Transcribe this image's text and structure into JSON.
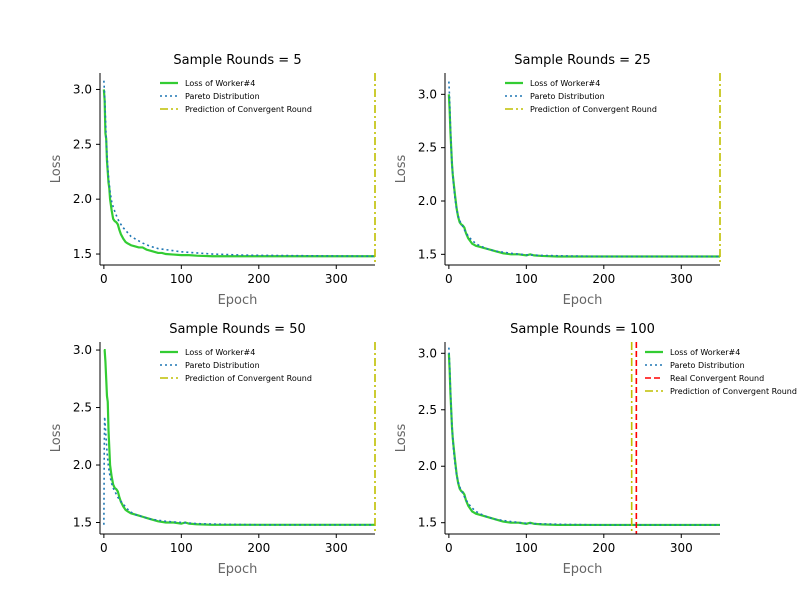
{
  "colors": {
    "loss": "#33cc33",
    "pareto": "#1f77b4",
    "real": "#ff0000",
    "prediction": "#bfbf00",
    "axis_label": "#666666"
  },
  "chart_data": [
    {
      "type": "line",
      "title": "Sample Rounds = 5",
      "xlabel": "Epoch",
      "ylabel": "Loss",
      "xlim": [
        -5,
        350
      ],
      "ylim": [
        1.4,
        3.15
      ],
      "xticks": [
        0,
        100,
        200,
        300
      ],
      "yticks": [
        1.5,
        2.0,
        2.5,
        3.0
      ],
      "xtick_labels": [
        "0",
        "100",
        "200",
        "300"
      ],
      "ytick_labels": [
        "1.5",
        "2.0",
        "2.5",
        "3.0"
      ],
      "grid": false,
      "legend_position": "top-center",
      "legend": [
        "Loss of Worker#4",
        "Pareto Distribution",
        "Prediction of Convergent Round"
      ],
      "series": [
        {
          "name": "Loss of Worker#4",
          "style": "solid",
          "color": "#33cc33",
          "x": [
            0,
            1,
            2,
            3,
            4,
            5,
            6,
            7,
            8,
            10,
            12,
            14,
            16,
            18,
            20,
            22,
            25,
            28,
            30,
            35,
            40,
            45,
            50,
            55,
            60,
            65,
            70,
            75,
            80,
            90,
            100,
            110,
            120,
            140,
            160,
            180,
            200,
            220,
            250,
            300,
            350
          ],
          "y": [
            3.0,
            2.9,
            2.6,
            2.55,
            2.35,
            2.25,
            2.15,
            2.1,
            2.0,
            1.9,
            1.82,
            1.8,
            1.79,
            1.77,
            1.72,
            1.68,
            1.64,
            1.61,
            1.6,
            1.58,
            1.57,
            1.56,
            1.56,
            1.54,
            1.53,
            1.52,
            1.51,
            1.51,
            1.5,
            1.495,
            1.49,
            1.49,
            1.485,
            1.48,
            1.48,
            1.48,
            1.48,
            1.48,
            1.48,
            1.48,
            1.48
          ]
        },
        {
          "name": "Pareto Distribution",
          "style": "dotted",
          "color": "#1f77b4",
          "x": [
            0,
            1,
            2,
            3,
            4,
            5,
            6,
            8,
            10,
            12,
            15,
            18,
            20,
            25,
            30,
            35,
            40,
            50,
            60,
            70,
            80,
            90,
            100,
            120,
            140,
            160,
            180,
            200,
            250,
            300,
            350
          ],
          "y": [
            3.08,
            2.95,
            2.75,
            2.55,
            2.4,
            2.3,
            2.2,
            2.07,
            1.98,
            1.93,
            1.87,
            1.82,
            1.79,
            1.74,
            1.7,
            1.66,
            1.64,
            1.6,
            1.57,
            1.55,
            1.54,
            1.53,
            1.52,
            1.51,
            1.5,
            1.495,
            1.49,
            1.488,
            1.485,
            1.482,
            1.48
          ]
        },
        {
          "name": "Prediction of Convergent Round",
          "style": "dashdot",
          "color": "#bfbf00",
          "vline": 350
        }
      ]
    },
    {
      "type": "line",
      "title": "Sample Rounds = 25",
      "xlabel": "Epoch",
      "ylabel": "Loss",
      "xlim": [
        -5,
        350
      ],
      "ylim": [
        1.4,
        3.2
      ],
      "xticks": [
        0,
        100,
        200,
        300
      ],
      "yticks": [
        1.5,
        2.0,
        2.5,
        3.0
      ],
      "xtick_labels": [
        "0",
        "100",
        "200",
        "300"
      ],
      "ytick_labels": [
        "1.5",
        "2.0",
        "2.5",
        "3.0"
      ],
      "grid": false,
      "legend_position": "top-center",
      "legend": [
        "Loss of Worker#4",
        "Pareto Distribution",
        "Prediction of Convergent Round"
      ],
      "series": [
        {
          "name": "Loss of Worker#4",
          "style": "solid",
          "color": "#33cc33",
          "x": [
            0,
            1,
            2,
            3,
            4,
            5,
            6,
            8,
            10,
            12,
            14,
            16,
            18,
            20,
            22,
            25,
            28,
            30,
            35,
            40,
            45,
            50,
            55,
            60,
            65,
            70,
            80,
            90,
            100,
            105,
            110,
            120,
            140,
            160,
            180,
            200,
            250,
            300,
            350
          ],
          "y": [
            3.0,
            2.85,
            2.65,
            2.5,
            2.35,
            2.25,
            2.18,
            2.05,
            1.93,
            1.85,
            1.8,
            1.78,
            1.77,
            1.75,
            1.7,
            1.65,
            1.62,
            1.6,
            1.58,
            1.57,
            1.56,
            1.55,
            1.54,
            1.53,
            1.52,
            1.51,
            1.5,
            1.5,
            1.49,
            1.5,
            1.49,
            1.485,
            1.48,
            1.48,
            1.48,
            1.48,
            1.48,
            1.48,
            1.48
          ]
        },
        {
          "name": "Pareto Distribution",
          "style": "dotted",
          "color": "#1f77b4",
          "x": [
            0,
            1,
            2,
            3,
            4,
            5,
            6,
            8,
            10,
            12,
            15,
            18,
            20,
            25,
            30,
            35,
            40,
            50,
            60,
            70,
            80,
            100,
            120,
            150,
            200,
            250,
            300,
            350
          ],
          "y": [
            3.12,
            2.95,
            2.7,
            2.5,
            2.35,
            2.25,
            2.15,
            2.02,
            1.92,
            1.86,
            1.8,
            1.76,
            1.73,
            1.67,
            1.63,
            1.6,
            1.58,
            1.55,
            1.53,
            1.52,
            1.51,
            1.495,
            1.49,
            1.485,
            1.48,
            1.48,
            1.48,
            1.48
          ]
        },
        {
          "name": "Prediction of Convergent Round",
          "style": "dashdot",
          "color": "#bfbf00",
          "vline": 350
        }
      ]
    },
    {
      "type": "line",
      "title": "Sample Rounds = 50",
      "xlabel": "Epoch",
      "ylabel": "Loss",
      "xlim": [
        -5,
        350
      ],
      "ylim": [
        1.4,
        3.07
      ],
      "xticks": [
        0,
        100,
        200,
        300
      ],
      "yticks": [
        1.5,
        2.0,
        2.5,
        3.0
      ],
      "xtick_labels": [
        "0",
        "100",
        "200",
        "300"
      ],
      "ytick_labels": [
        "1.5",
        "2.0",
        "2.5",
        "3.0"
      ],
      "grid": false,
      "legend_position": "top-center",
      "legend": [
        "Loss of Worker#4",
        "Pareto Distribution",
        "Prediction of Convergent Round"
      ],
      "series": [
        {
          "name": "Loss of Worker#4",
          "style": "solid",
          "color": "#33cc33",
          "x": [
            0,
            1,
            2,
            3,
            4,
            5,
            6,
            7,
            8,
            10,
            12,
            14,
            16,
            18,
            20,
            22,
            25,
            28,
            30,
            35,
            40,
            45,
            50,
            55,
            60,
            65,
            70,
            80,
            90,
            100,
            105,
            110,
            120,
            140,
            160,
            180,
            200,
            250,
            300,
            350
          ],
          "y": [
            3.0,
            3.0,
            2.9,
            2.75,
            2.6,
            2.55,
            2.3,
            2.15,
            2.0,
            1.9,
            1.83,
            1.8,
            1.79,
            1.77,
            1.72,
            1.68,
            1.64,
            1.61,
            1.6,
            1.58,
            1.57,
            1.56,
            1.55,
            1.54,
            1.53,
            1.52,
            1.51,
            1.5,
            1.5,
            1.49,
            1.5,
            1.49,
            1.485,
            1.48,
            1.48,
            1.48,
            1.48,
            1.48,
            1.48,
            1.48
          ]
        },
        {
          "name": "Pareto Distribution",
          "style": "dotted",
          "color": "#1f77b4",
          "x": [
            0,
            0.5,
            1,
            2,
            3,
            4,
            5,
            6,
            8,
            10,
            12,
            15,
            18,
            20,
            25,
            30,
            35,
            40,
            50,
            60,
            70,
            80,
            100,
            120,
            150,
            200,
            250,
            300,
            350
          ],
          "y": [
            1.48,
            2.15,
            2.42,
            2.32,
            2.22,
            2.12,
            2.05,
            1.98,
            1.9,
            1.84,
            1.8,
            1.76,
            1.72,
            1.7,
            1.66,
            1.62,
            1.59,
            1.57,
            1.55,
            1.53,
            1.52,
            1.51,
            1.5,
            1.49,
            1.485,
            1.48,
            1.48,
            1.48,
            1.48
          ]
        },
        {
          "name": "Prediction of Convergent Round",
          "style": "dashdot",
          "color": "#bfbf00",
          "vline": 350
        }
      ]
    },
    {
      "type": "line",
      "title": "Sample Rounds = 100",
      "xlabel": "Epoch",
      "ylabel": "Loss",
      "xlim": [
        -5,
        350
      ],
      "ylim": [
        1.4,
        3.1
      ],
      "xticks": [
        0,
        100,
        200,
        300
      ],
      "yticks": [
        1.5,
        2.0,
        2.5,
        3.0
      ],
      "xtick_labels": [
        "0",
        "100",
        "200",
        "300"
      ],
      "ytick_labels": [
        "1.5",
        "2.0",
        "2.5",
        "3.0"
      ],
      "grid": false,
      "legend_position": "top-right",
      "legend": [
        "Loss of Worker#4",
        "Pareto Distribution",
        "Real Convergent Round",
        "Prediction of Convergent Round"
      ],
      "series": [
        {
          "name": "Loss of Worker#4",
          "style": "solid",
          "color": "#33cc33",
          "x": [
            0,
            1,
            2,
            3,
            4,
            5,
            6,
            8,
            10,
            12,
            14,
            16,
            18,
            20,
            22,
            25,
            28,
            30,
            35,
            40,
            45,
            50,
            55,
            60,
            65,
            70,
            80,
            90,
            100,
            105,
            110,
            120,
            140,
            160,
            180,
            200,
            250,
            300,
            350
          ],
          "y": [
            3.0,
            2.85,
            2.65,
            2.5,
            2.35,
            2.25,
            2.18,
            2.05,
            1.93,
            1.85,
            1.8,
            1.78,
            1.77,
            1.75,
            1.7,
            1.65,
            1.62,
            1.6,
            1.58,
            1.57,
            1.56,
            1.55,
            1.54,
            1.53,
            1.52,
            1.51,
            1.5,
            1.5,
            1.49,
            1.5,
            1.49,
            1.485,
            1.48,
            1.48,
            1.48,
            1.48,
            1.48,
            1.48,
            1.48
          ]
        },
        {
          "name": "Pareto Distribution",
          "style": "dotted",
          "color": "#1f77b4",
          "x": [
            0,
            1,
            2,
            3,
            4,
            5,
            6,
            8,
            10,
            12,
            15,
            18,
            20,
            25,
            30,
            35,
            40,
            50,
            60,
            70,
            80,
            100,
            120,
            150,
            200,
            250,
            300,
            350
          ],
          "y": [
            3.05,
            2.9,
            2.68,
            2.5,
            2.35,
            2.25,
            2.15,
            2.02,
            1.92,
            1.86,
            1.8,
            1.76,
            1.73,
            1.67,
            1.63,
            1.6,
            1.58,
            1.55,
            1.53,
            1.52,
            1.51,
            1.495,
            1.49,
            1.485,
            1.48,
            1.48,
            1.48,
            1.48
          ]
        },
        {
          "name": "Real Convergent Round",
          "style": "dashed",
          "color": "#ff0000",
          "vline": 242
        },
        {
          "name": "Prediction of Convergent Round",
          "style": "dashdot",
          "color": "#bfbf00",
          "vline": 236
        }
      ]
    }
  ]
}
